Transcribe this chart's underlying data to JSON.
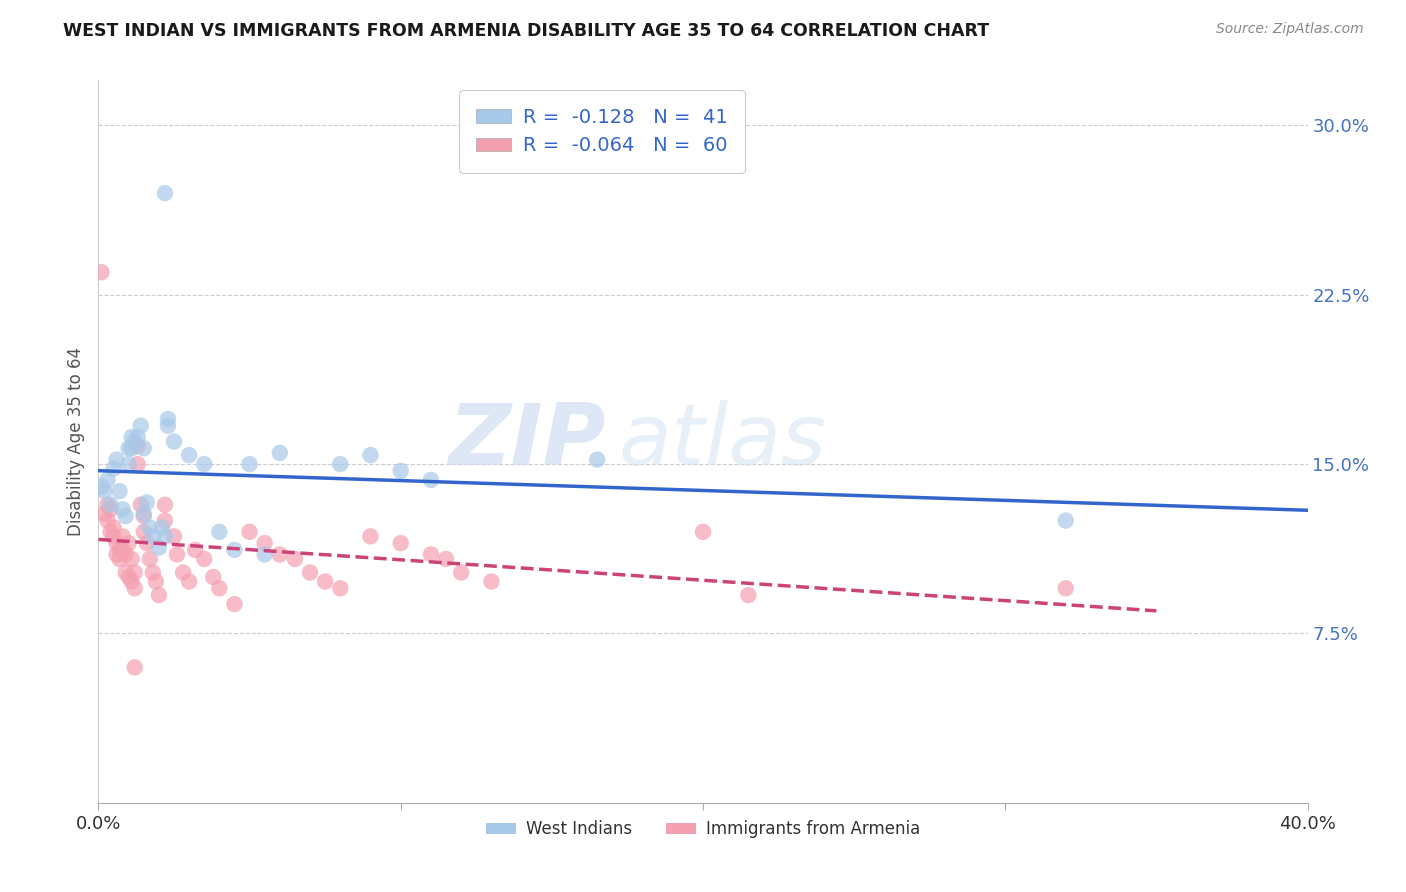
{
  "title": "WEST INDIAN VS IMMIGRANTS FROM ARMENIA DISABILITY AGE 35 TO 64 CORRELATION CHART",
  "source": "Source: ZipAtlas.com",
  "ylabel": "Disability Age 35 to 64",
  "xlim": [
    0.0,
    0.4
  ],
  "ylim": [
    0.0,
    0.32
  ],
  "yticks_right": [
    0.075,
    0.15,
    0.225,
    0.3
  ],
  "ytick_labels_right": [
    "7.5%",
    "15.0%",
    "22.5%",
    "30.0%"
  ],
  "west_indian_R": -0.128,
  "west_indian_N": 41,
  "armenia_R": -0.064,
  "armenia_N": 60,
  "west_indian_color": "#a8c8e8",
  "armenia_color": "#f4a0b0",
  "west_indian_line_color": "#3366cc",
  "armenia_line_color": "#cc4477",
  "background_color": "#ffffff",
  "watermark_zip": "ZIP",
  "watermark_atlas": "atlas",
  "west_indian_points": [
    [
      0.001,
      0.14
    ],
    [
      0.002,
      0.138
    ],
    [
      0.003,
      0.143
    ],
    [
      0.004,
      0.132
    ],
    [
      0.005,
      0.148
    ],
    [
      0.006,
      0.152
    ],
    [
      0.007,
      0.138
    ],
    [
      0.008,
      0.13
    ],
    [
      0.009,
      0.127
    ],
    [
      0.01,
      0.157
    ],
    [
      0.01,
      0.15
    ],
    [
      0.011,
      0.157
    ],
    [
      0.011,
      0.162
    ],
    [
      0.012,
      0.16
    ],
    [
      0.013,
      0.162
    ],
    [
      0.014,
      0.167
    ],
    [
      0.015,
      0.157
    ],
    [
      0.015,
      0.128
    ],
    [
      0.016,
      0.133
    ],
    [
      0.017,
      0.122
    ],
    [
      0.018,
      0.118
    ],
    [
      0.02,
      0.113
    ],
    [
      0.021,
      0.122
    ],
    [
      0.022,
      0.118
    ],
    [
      0.023,
      0.167
    ],
    [
      0.023,
      0.17
    ],
    [
      0.025,
      0.16
    ],
    [
      0.03,
      0.154
    ],
    [
      0.035,
      0.15
    ],
    [
      0.04,
      0.12
    ],
    [
      0.045,
      0.112
    ],
    [
      0.05,
      0.15
    ],
    [
      0.055,
      0.11
    ],
    [
      0.06,
      0.155
    ],
    [
      0.08,
      0.15
    ],
    [
      0.09,
      0.154
    ],
    [
      0.1,
      0.147
    ],
    [
      0.11,
      0.143
    ],
    [
      0.165,
      0.152
    ],
    [
      0.32,
      0.125
    ],
    [
      0.022,
      0.27
    ]
  ],
  "armenia_points": [
    [
      0.001,
      0.235
    ],
    [
      0.002,
      0.128
    ],
    [
      0.003,
      0.132
    ],
    [
      0.003,
      0.125
    ],
    [
      0.004,
      0.13
    ],
    [
      0.004,
      0.12
    ],
    [
      0.005,
      0.122
    ],
    [
      0.005,
      0.118
    ],
    [
      0.006,
      0.115
    ],
    [
      0.006,
      0.11
    ],
    [
      0.007,
      0.112
    ],
    [
      0.007,
      0.108
    ],
    [
      0.008,
      0.118
    ],
    [
      0.008,
      0.112
    ],
    [
      0.009,
      0.11
    ],
    [
      0.009,
      0.102
    ],
    [
      0.01,
      0.115
    ],
    [
      0.01,
      0.1
    ],
    [
      0.011,
      0.108
    ],
    [
      0.011,
      0.098
    ],
    [
      0.012,
      0.102
    ],
    [
      0.012,
      0.095
    ],
    [
      0.013,
      0.158
    ],
    [
      0.013,
      0.15
    ],
    [
      0.014,
      0.132
    ],
    [
      0.015,
      0.127
    ],
    [
      0.015,
      0.12
    ],
    [
      0.016,
      0.115
    ],
    [
      0.017,
      0.108
    ],
    [
      0.018,
      0.102
    ],
    [
      0.019,
      0.098
    ],
    [
      0.02,
      0.092
    ],
    [
      0.022,
      0.132
    ],
    [
      0.022,
      0.125
    ],
    [
      0.025,
      0.118
    ],
    [
      0.026,
      0.11
    ],
    [
      0.028,
      0.102
    ],
    [
      0.03,
      0.098
    ],
    [
      0.032,
      0.112
    ],
    [
      0.035,
      0.108
    ],
    [
      0.038,
      0.1
    ],
    [
      0.04,
      0.095
    ],
    [
      0.045,
      0.088
    ],
    [
      0.05,
      0.12
    ],
    [
      0.055,
      0.115
    ],
    [
      0.06,
      0.11
    ],
    [
      0.065,
      0.108
    ],
    [
      0.07,
      0.102
    ],
    [
      0.075,
      0.098
    ],
    [
      0.08,
      0.095
    ],
    [
      0.09,
      0.118
    ],
    [
      0.1,
      0.115
    ],
    [
      0.11,
      0.11
    ],
    [
      0.115,
      0.108
    ],
    [
      0.12,
      0.102
    ],
    [
      0.13,
      0.098
    ],
    [
      0.2,
      0.12
    ],
    [
      0.215,
      0.092
    ],
    [
      0.32,
      0.095
    ],
    [
      0.012,
      0.06
    ]
  ]
}
